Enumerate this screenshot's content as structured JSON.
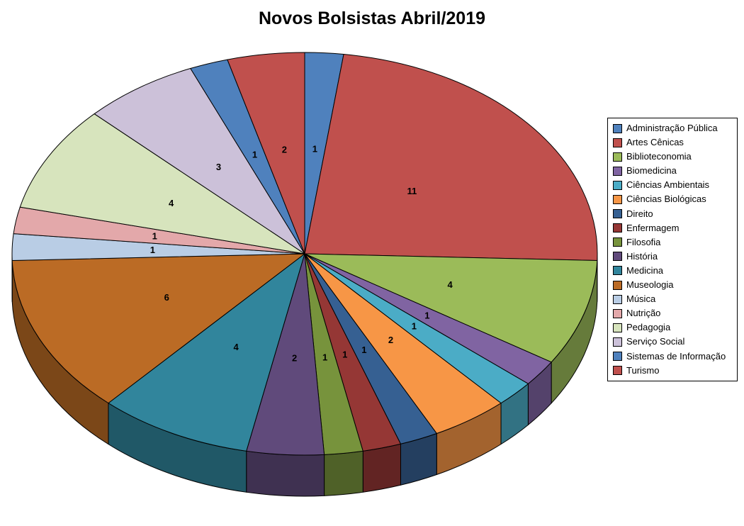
{
  "title": "Novos Bolsistas Abril/2019",
  "chart_data": {
    "type": "pie",
    "style": "3d",
    "title": "Novos Bolsistas Abril/2019",
    "total": 47,
    "start_angle_deg": 0,
    "direction": "clockwise",
    "data_labels": "value",
    "legend_position": "right",
    "background_color": "#FFFFFF",
    "outline_color": "#000000",
    "categories": [
      "Administração Pública",
      "Artes Cênicas",
      "Biblioteconomia",
      "Biomedicina",
      "Ciências Ambientais",
      "Ciências Biológicas",
      "Direito",
      "Enfermagem",
      "Filosofia",
      "História",
      "Medicina",
      "Museologia",
      "Música",
      "Nutrição",
      "Pedagogia",
      "Serviço Social",
      "Sistemas de Informação",
      "Turismo"
    ],
    "values": [
      1,
      11,
      4,
      1,
      1,
      2,
      1,
      1,
      1,
      2,
      4,
      6,
      1,
      1,
      4,
      3,
      1,
      2
    ],
    "colors": [
      "#4F81BD",
      "#C0504D",
      "#9BBB59",
      "#8064A2",
      "#4BACC6",
      "#F79646",
      "#366092",
      "#953735",
      "#77933C",
      "#604A7B",
      "#31859C",
      "#BB6B25",
      "#B9CDE5",
      "#E3A8AA",
      "#D7E4BD",
      "#CCC1D9",
      "#4F81BD",
      "#C0504D"
    ]
  }
}
